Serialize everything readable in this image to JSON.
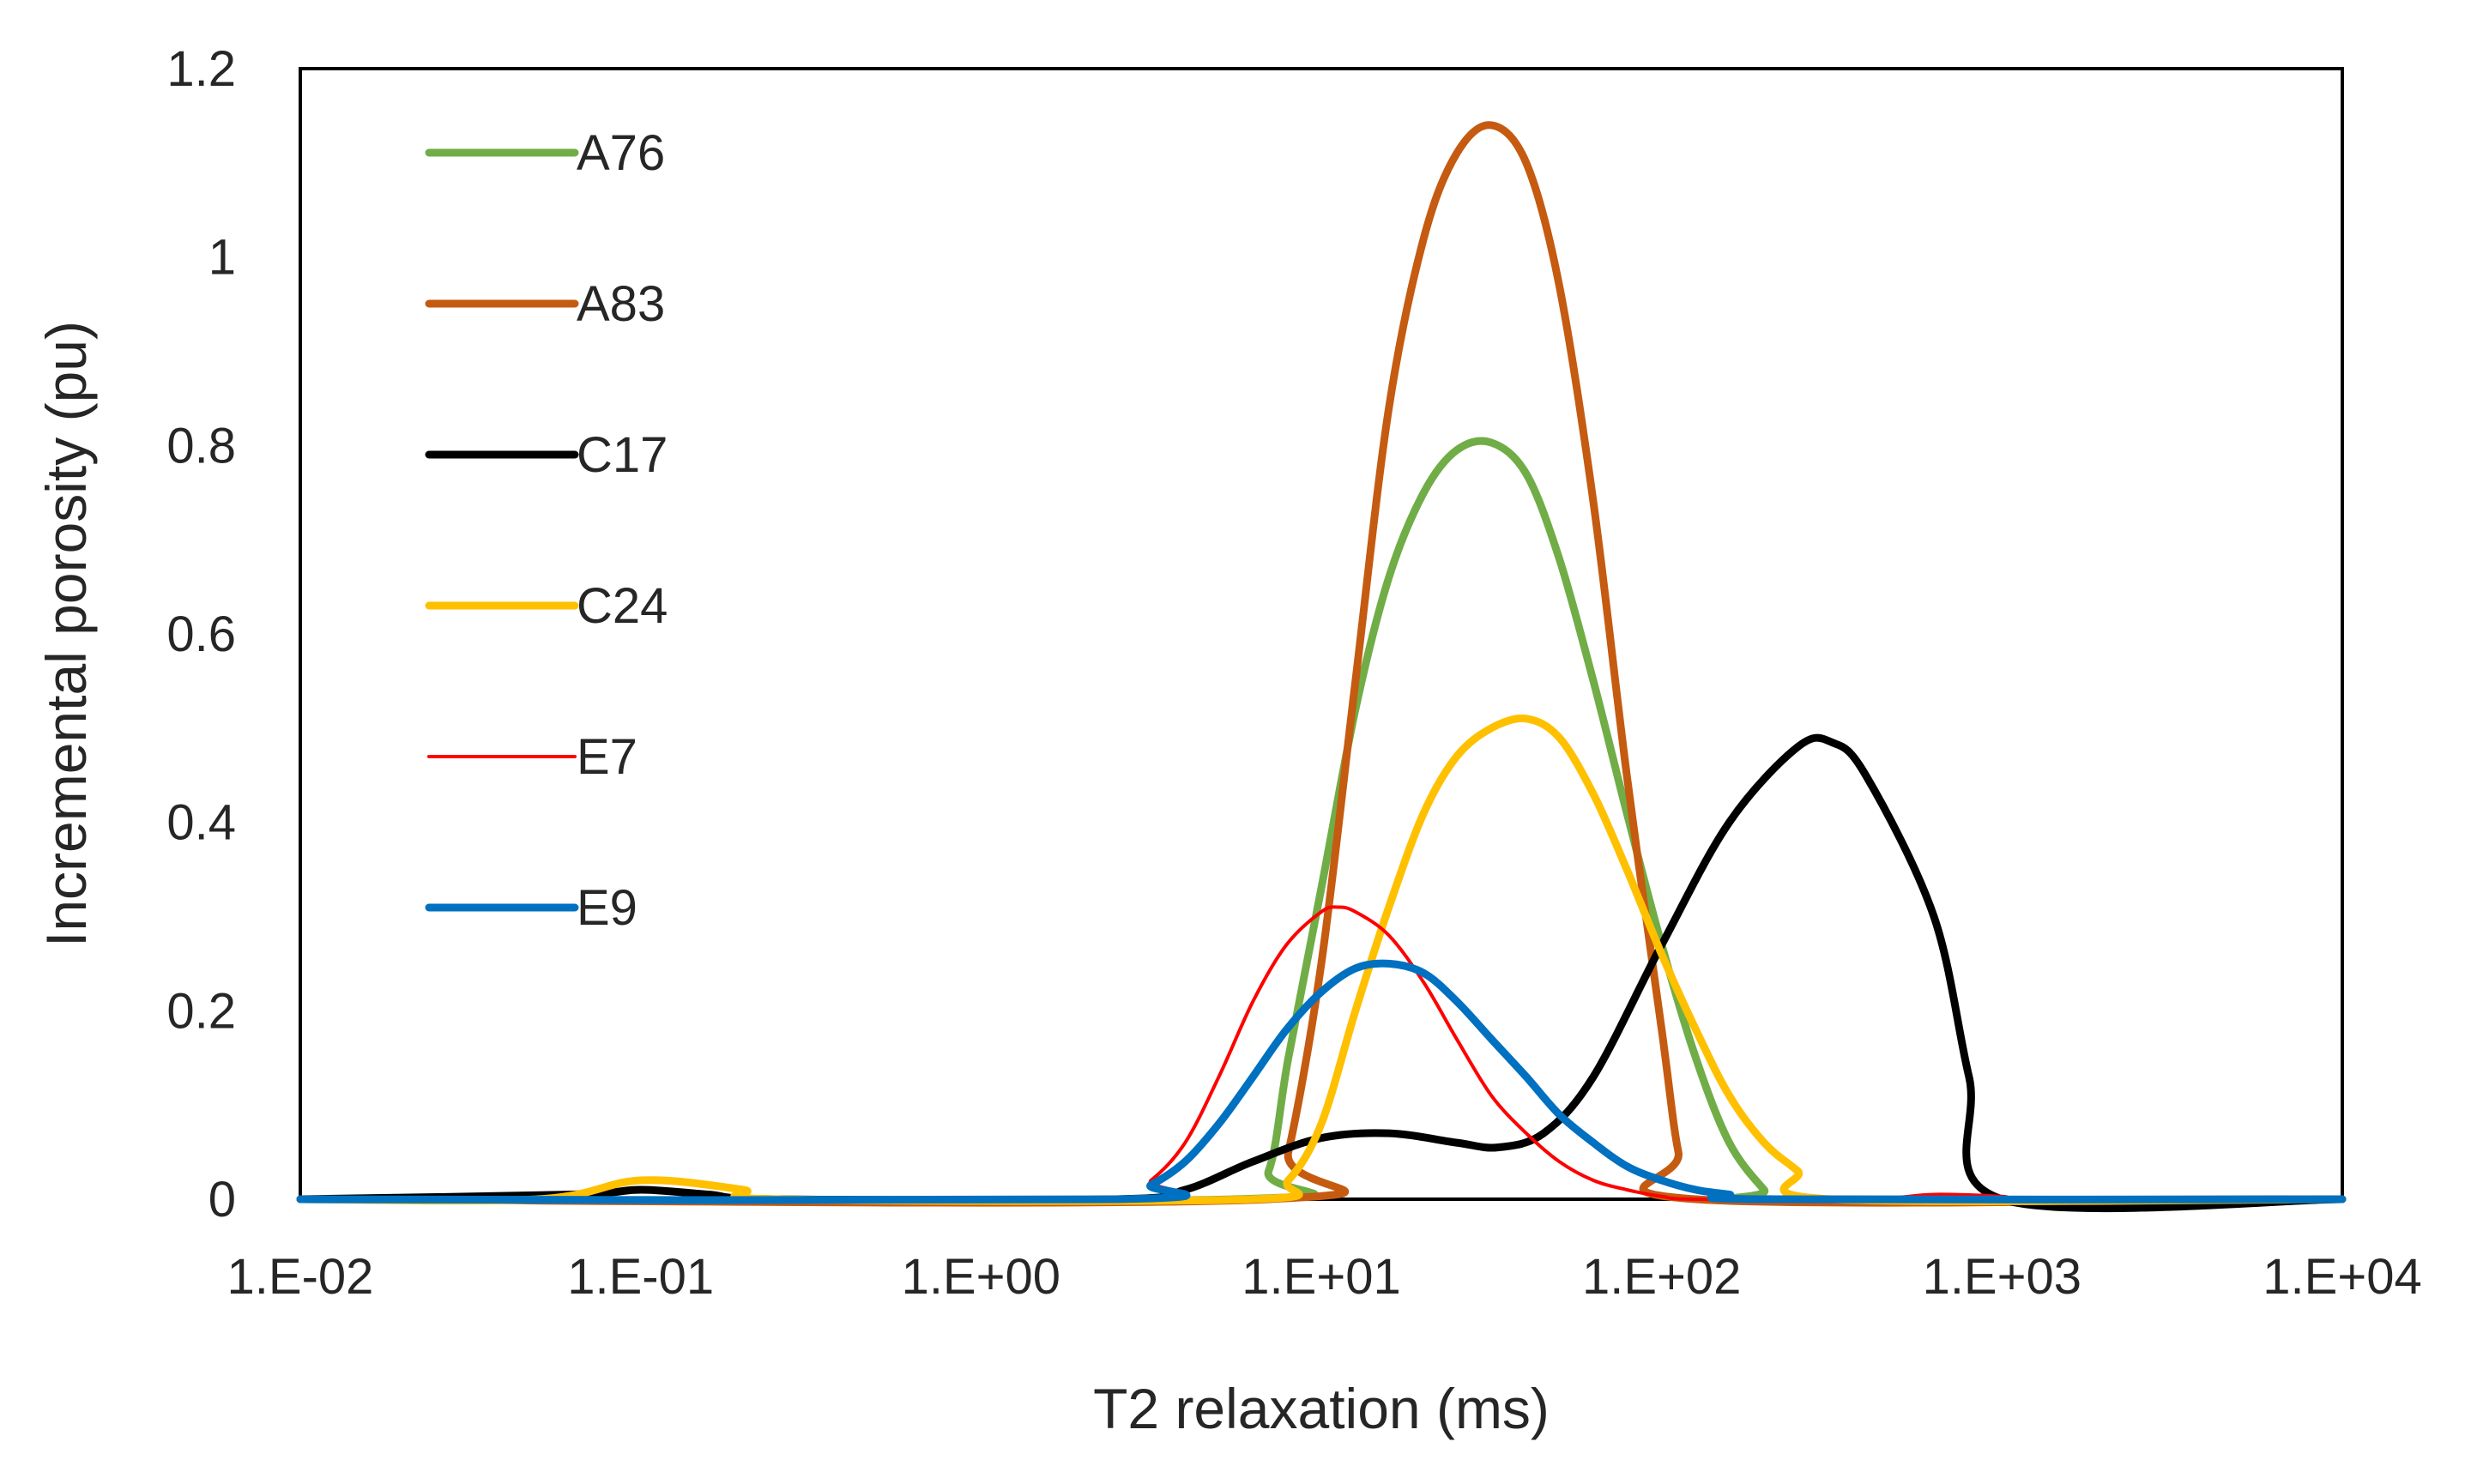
{
  "chart_data": {
    "type": "line",
    "title": "",
    "xlabel": "T2 relaxation (ms)",
    "ylabel": "Incremental porosity (pu)",
    "xscale": "log",
    "xlim": [
      0.01,
      10000
    ],
    "ylim": [
      0,
      1.2
    ],
    "x_ticks": [
      0.01,
      0.1,
      1,
      10,
      100,
      1000,
      10000
    ],
    "x_tick_labels": [
      "1.E-02",
      "1.E-01",
      "1.E+00",
      "1.E+01",
      "1.E+02",
      "1.E+03",
      "1.E+04"
    ],
    "y_ticks": [
      0,
      0.2,
      0.4,
      0.6,
      0.8,
      1,
      1.2
    ],
    "y_tick_labels": [
      "0",
      "0.2",
      "0.4",
      "0.6",
      "0.8",
      "1",
      "1.2"
    ],
    "grid": false,
    "legend_position": "top-left",
    "series": [
      {
        "name": "A76",
        "color": "#70AD47",
        "line_weight": "thick",
        "points": [
          [
            0.01,
            0
          ],
          [
            5.6,
            0
          ],
          [
            7,
            0.03
          ],
          [
            8,
            0.15
          ],
          [
            10,
            0.33
          ],
          [
            12.6,
            0.52
          ],
          [
            15.8,
            0.66
          ],
          [
            20,
            0.75
          ],
          [
            25,
            0.795
          ],
          [
            31.6,
            0.803
          ],
          [
            40,
            0.77
          ],
          [
            50,
            0.68
          ],
          [
            63,
            0.55
          ],
          [
            79,
            0.41
          ],
          [
            100,
            0.27
          ],
          [
            126,
            0.15
          ],
          [
            158,
            0.06
          ],
          [
            200,
            0.01
          ],
          [
            220,
            0
          ],
          [
            10000,
            0
          ]
        ]
      },
      {
        "name": "A83",
        "color": "#C55A11",
        "line_weight": "thick",
        "points": [
          [
            0.01,
            0
          ],
          [
            7,
            0
          ],
          [
            8,
            0.05
          ],
          [
            10,
            0.25
          ],
          [
            12.6,
            0.55
          ],
          [
            15.8,
            0.84
          ],
          [
            20,
            1.02
          ],
          [
            25,
            1.11
          ],
          [
            31.6,
            1.14
          ],
          [
            40,
            1.1
          ],
          [
            50,
            0.97
          ],
          [
            63,
            0.74
          ],
          [
            79,
            0.45
          ],
          [
            100,
            0.18
          ],
          [
            112,
            0.05
          ],
          [
            126,
            0
          ],
          [
            10000,
            0
          ]
        ]
      },
      {
        "name": "C17",
        "color": "#000000",
        "line_weight": "thick",
        "points": [
          [
            0.01,
            0
          ],
          [
            0.063,
            0.005
          ],
          [
            0.1,
            0.01
          ],
          [
            0.158,
            0.005
          ],
          [
            0.25,
            0
          ],
          [
            2.5,
            0
          ],
          [
            3.98,
            0.01
          ],
          [
            6.3,
            0.04
          ],
          [
            10,
            0.065
          ],
          [
            15.8,
            0.07
          ],
          [
            25,
            0.06
          ],
          [
            33,
            0.055
          ],
          [
            45,
            0.07
          ],
          [
            63,
            0.13
          ],
          [
            100,
            0.27
          ],
          [
            158,
            0.4
          ],
          [
            251,
            0.48
          ],
          [
            316,
            0.485
          ],
          [
            398,
            0.45
          ],
          [
            631,
            0.3
          ],
          [
            800,
            0.13
          ],
          [
            1000,
            0
          ],
          [
            10000,
            0
          ]
        ]
      },
      {
        "name": "C24",
        "color": "#FFC000",
        "line_weight": "thick",
        "points": [
          [
            0.01,
            0
          ],
          [
            0.05,
            0
          ],
          [
            0.1,
            0.02
          ],
          [
            0.2,
            0.01
          ],
          [
            0.25,
            0
          ],
          [
            6.3,
            0
          ],
          [
            8,
            0.02
          ],
          [
            10,
            0.08
          ],
          [
            12.6,
            0.2
          ],
          [
            15.8,
            0.31
          ],
          [
            20,
            0.41
          ],
          [
            25,
            0.47
          ],
          [
            31.6,
            0.5
          ],
          [
            40,
            0.51
          ],
          [
            50,
            0.49
          ],
          [
            63,
            0.43
          ],
          [
            79,
            0.35
          ],
          [
            100,
            0.26
          ],
          [
            126,
            0.18
          ],
          [
            158,
            0.11
          ],
          [
            200,
            0.06
          ],
          [
            251,
            0.03
          ],
          [
            316,
            0
          ],
          [
            10000,
            0
          ]
        ]
      },
      {
        "name": "E7",
        "color": "#FF0000",
        "line_weight": "thin",
        "points": [
          [
            0.01,
            0
          ],
          [
            2.5,
            0
          ],
          [
            3.16,
            0.02
          ],
          [
            3.98,
            0.06
          ],
          [
            5,
            0.13
          ],
          [
            6.3,
            0.21
          ],
          [
            7.9,
            0.27
          ],
          [
            10,
            0.305
          ],
          [
            11.2,
            0.31
          ],
          [
            12.6,
            0.305
          ],
          [
            15.8,
            0.28
          ],
          [
            20,
            0.23
          ],
          [
            25,
            0.17
          ],
          [
            31.6,
            0.11
          ],
          [
            40,
            0.07
          ],
          [
            50,
            0.04
          ],
          [
            63,
            0.02
          ],
          [
            79,
            0.01
          ],
          [
            100,
            0.003
          ],
          [
            126,
            0
          ],
          [
            398,
            0
          ],
          [
            631,
            0.005
          ],
          [
            1000,
            0.003
          ],
          [
            1260,
            0
          ],
          [
            10000,
            0
          ]
        ]
      },
      {
        "name": "E9",
        "color": "#0070C0",
        "line_weight": "thick",
        "points": [
          [
            0.01,
            0
          ],
          [
            2.5,
            0
          ],
          [
            3.16,
            0.015
          ],
          [
            3.98,
            0.04
          ],
          [
            5,
            0.08
          ],
          [
            6.3,
            0.13
          ],
          [
            7.9,
            0.18
          ],
          [
            10,
            0.22
          ],
          [
            12.6,
            0.245
          ],
          [
            15.8,
            0.25
          ],
          [
            20,
            0.24
          ],
          [
            25,
            0.21
          ],
          [
            31.6,
            0.17
          ],
          [
            40,
            0.13
          ],
          [
            50,
            0.09
          ],
          [
            63,
            0.06
          ],
          [
            79,
            0.035
          ],
          [
            100,
            0.02
          ],
          [
            126,
            0.01
          ],
          [
            158,
            0.005
          ],
          [
            200,
            0
          ],
          [
            10000,
            0
          ]
        ]
      }
    ]
  }
}
